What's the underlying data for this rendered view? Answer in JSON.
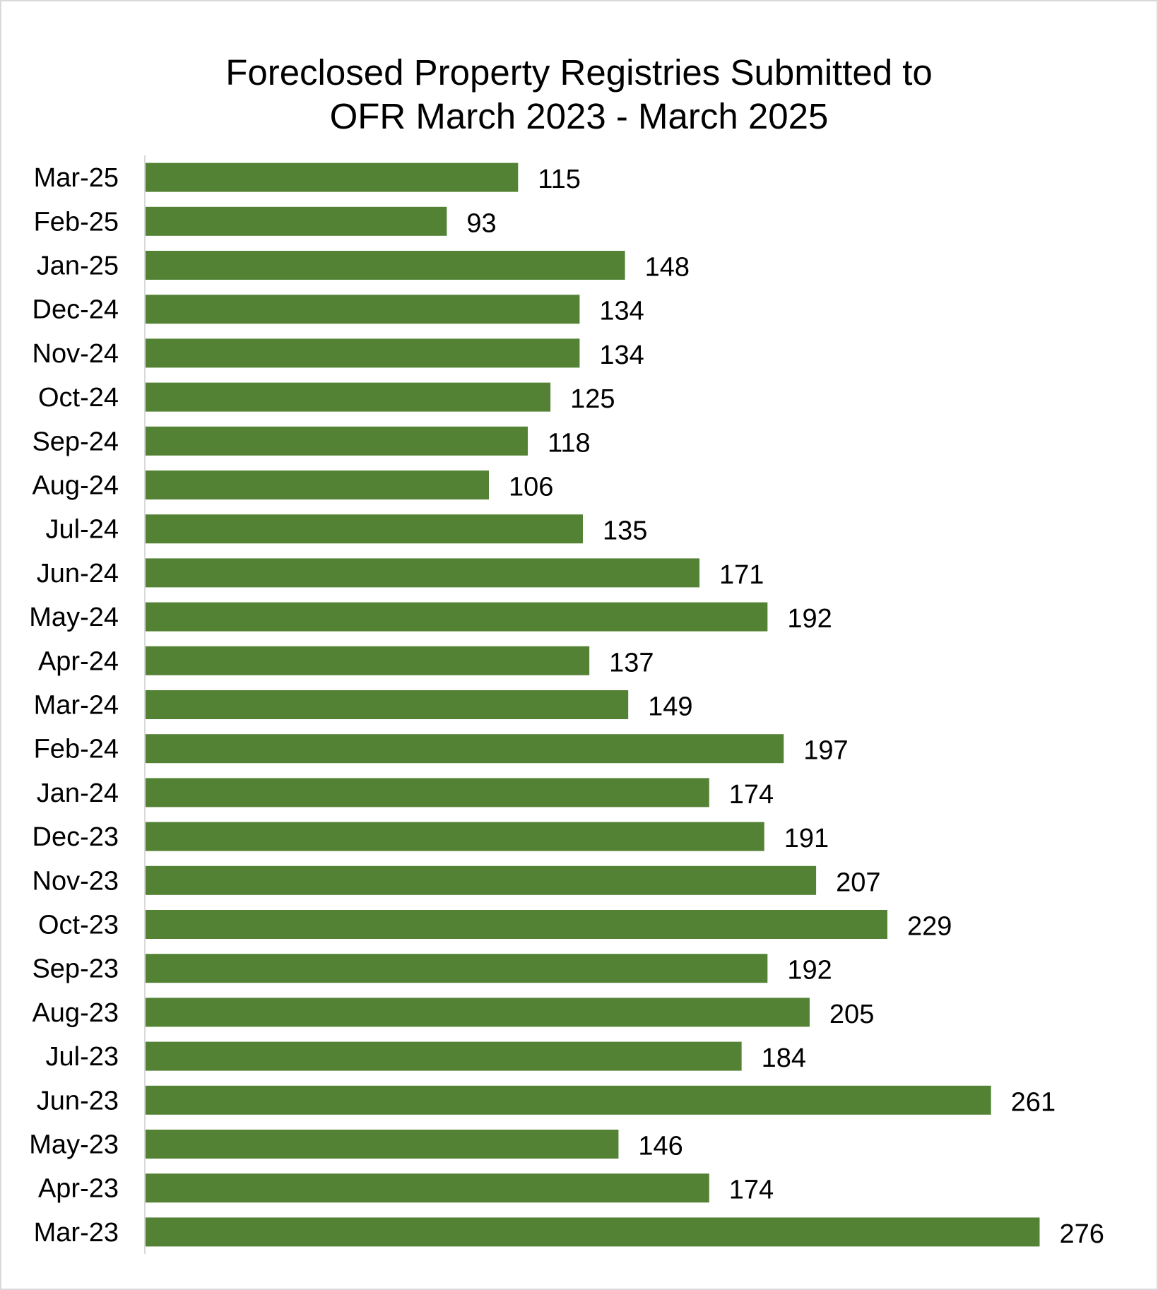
{
  "chart_data": {
    "type": "bar",
    "orientation": "horizontal",
    "title": [
      "Foreclosed Property Registries Submitted to",
      "OFR March 2023 - March 2025"
    ],
    "xlabel": "",
    "ylabel": "",
    "xlim": [
      0,
      300
    ],
    "grid": false,
    "legend": "none",
    "data_labels": true,
    "categories": [
      "Mar-25",
      "Feb-25",
      "Jan-25",
      "Dec-24",
      "Nov-24",
      "Oct-24",
      "Sep-24",
      "Aug-24",
      "Jul-24",
      "Jun-24",
      "May-24",
      "Apr-24",
      "Mar-24",
      "Feb-24",
      "Jan-24",
      "Dec-23",
      "Nov-23",
      "Oct-23",
      "Sep-23",
      "Aug-23",
      "Jul-23",
      "Jun-23",
      "May-23",
      "Apr-23",
      "Mar-23"
    ],
    "values": [
      115,
      93,
      148,
      134,
      134,
      125,
      118,
      106,
      135,
      171,
      192,
      137,
      149,
      197,
      174,
      191,
      207,
      229,
      192,
      205,
      184,
      261,
      146,
      174,
      276
    ],
    "colors": {
      "bar": "#548235",
      "axis": "#d9d9d9",
      "text": "#000000"
    }
  }
}
